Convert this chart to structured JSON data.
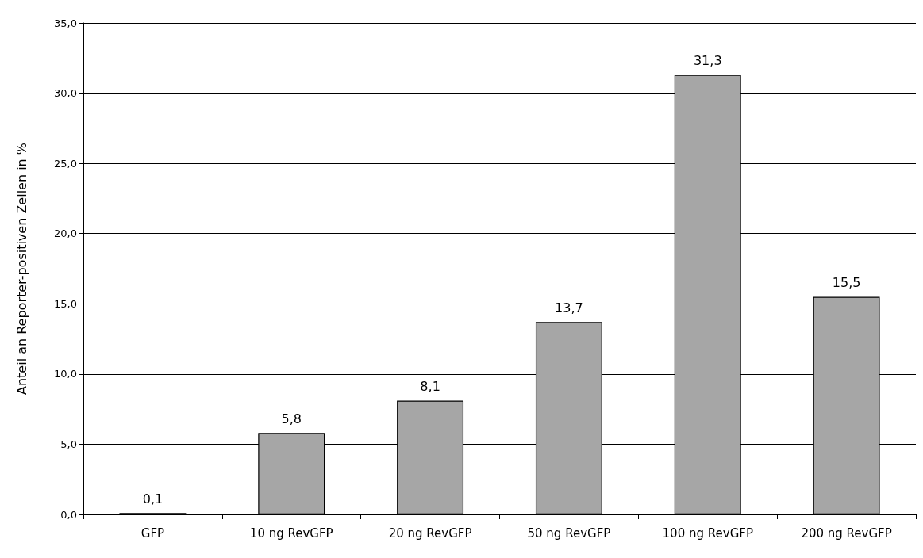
{
  "chart_data": {
    "type": "bar",
    "ylabel": "Anteil an Reporter-positiven Zellen in %",
    "categories": [
      "GFP",
      "10 ng RevGFP",
      "20 ng RevGFP",
      "50 ng RevGFP",
      "100 ng RevGFP",
      "200 ng RevGFP"
    ],
    "values": [
      0.1,
      5.8,
      8.1,
      13.7,
      31.3,
      15.5
    ],
    "value_labels": [
      "0,1",
      "5,8",
      "8,1",
      "13,7",
      "31,3",
      "15,5"
    ],
    "color": "#a6a6a6",
    "ylim": [
      0,
      35
    ],
    "yticks": [
      {
        "value": 0,
        "label": "0,0"
      },
      {
        "value": 5,
        "label": "5,0"
      },
      {
        "value": 10,
        "label": "10,0"
      },
      {
        "value": 15,
        "label": "15,0"
      },
      {
        "value": 20,
        "label": "20,0"
      },
      {
        "value": 25,
        "label": "25,0"
      },
      {
        "value": 30,
        "label": "30,0"
      },
      {
        "value": 35,
        "label": "35,0"
      }
    ],
    "grid": "y"
  }
}
